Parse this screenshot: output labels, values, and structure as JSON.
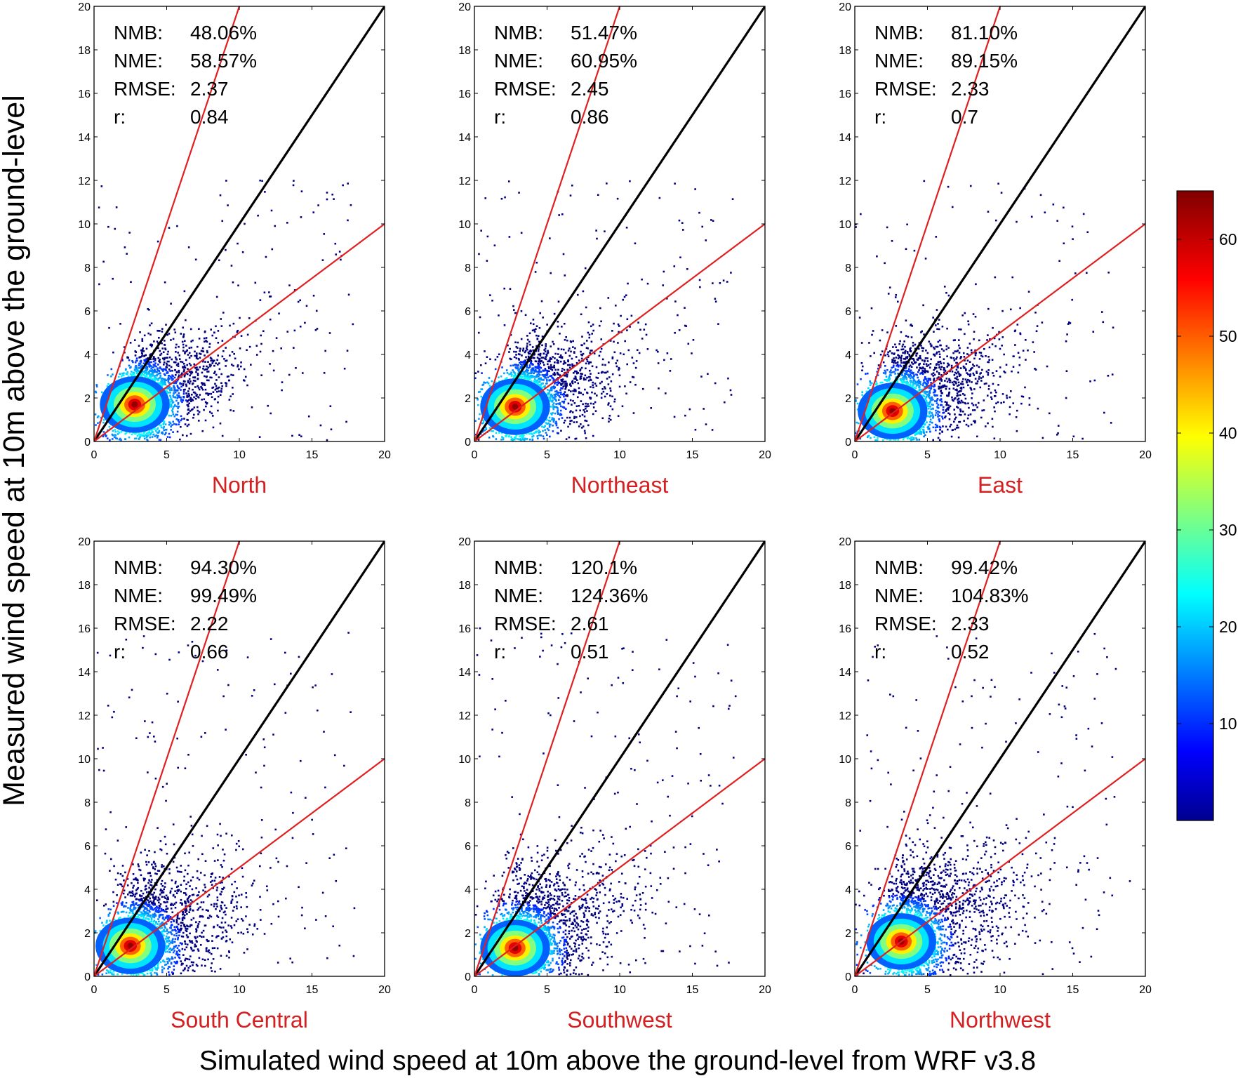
{
  "figure": {
    "ylabel": "Measured wind speed  at 10m above the ground-level",
    "xlabel": "Simulated wind speed at 10m above the ground-level from WRF v3.8",
    "colorbar": {
      "ticks": [
        10,
        20,
        30,
        40,
        50,
        60
      ],
      "range": [
        0,
        65
      ],
      "colormap": "jet"
    },
    "colors": {
      "identity_line": "#000000",
      "factor2_lines": "#e02020",
      "panel_label": "#d42020",
      "point_low": "#000080"
    }
  },
  "chart_data": [
    {
      "type": "scatter",
      "title": "North",
      "xlim": [
        0,
        20
      ],
      "ylim": [
        0,
        20
      ],
      "xticks": [
        0,
        5,
        10,
        15,
        20
      ],
      "yticks": [
        0,
        2,
        4,
        6,
        8,
        10,
        12,
        14,
        16,
        18,
        20
      ],
      "stats": [
        {
          "label": "NMB:",
          "value": "48.06%"
        },
        {
          "label": "NME:",
          "value": "58.57%"
        },
        {
          "label": "RMSE:",
          "value": "2.37"
        },
        {
          "label": "r:",
          "value": "0.84"
        }
      ],
      "reference_lines": [
        {
          "slope": 1
        },
        {
          "slope": 2
        },
        {
          "slope": 0.5
        }
      ],
      "density_center": [
        2.8,
        1.7
      ]
    },
    {
      "type": "scatter",
      "title": "Northeast",
      "xlim": [
        0,
        20
      ],
      "ylim": [
        0,
        20
      ],
      "xticks": [
        0,
        5,
        10,
        15,
        20
      ],
      "yticks": [
        0,
        2,
        4,
        6,
        8,
        10,
        12,
        14,
        16,
        18,
        20
      ],
      "stats": [
        {
          "label": "NMB:",
          "value": "51.47%"
        },
        {
          "label": "NME:",
          "value": "60.95%"
        },
        {
          "label": "RMSE:",
          "value": "2.45"
        },
        {
          "label": "r:",
          "value": "0.86"
        }
      ],
      "reference_lines": [
        {
          "slope": 1
        },
        {
          "slope": 2
        },
        {
          "slope": 0.5
        }
      ],
      "density_center": [
        2.8,
        1.6
      ]
    },
    {
      "type": "scatter",
      "title": "East",
      "xlim": [
        0,
        20
      ],
      "ylim": [
        0,
        20
      ],
      "xticks": [
        0,
        5,
        10,
        15,
        20
      ],
      "yticks": [
        0,
        2,
        4,
        6,
        8,
        10,
        12,
        14,
        16,
        18,
        20
      ],
      "stats": [
        {
          "label": "NMB:",
          "value": "81.10%"
        },
        {
          "label": "NME:",
          "value": "89.15%"
        },
        {
          "label": "RMSE:",
          "value": "2.33"
        },
        {
          "label": "r:",
          "value": "0.7"
        }
      ],
      "reference_lines": [
        {
          "slope": 1
        },
        {
          "slope": 2
        },
        {
          "slope": 0.5
        }
      ],
      "density_center": [
        2.6,
        1.4
      ]
    },
    {
      "type": "scatter",
      "title": "South Central",
      "xlim": [
        0,
        20
      ],
      "ylim": [
        0,
        20
      ],
      "xticks": [
        0,
        5,
        10,
        15,
        20
      ],
      "yticks": [
        0,
        2,
        4,
        6,
        8,
        10,
        12,
        14,
        16,
        18,
        20
      ],
      "stats": [
        {
          "label": "NMB:",
          "value": "94.30%"
        },
        {
          "label": "NME:",
          "value": "99.49%"
        },
        {
          "label": "RMSE:",
          "value": "2.22"
        },
        {
          "label": "r:",
          "value": "0.66"
        }
      ],
      "reference_lines": [
        {
          "slope": 1
        },
        {
          "slope": 2
        },
        {
          "slope": 0.5
        }
      ],
      "density_center": [
        2.5,
        1.4
      ]
    },
    {
      "type": "scatter",
      "title": "Southwest",
      "xlim": [
        0,
        20
      ],
      "ylim": [
        0,
        20
      ],
      "xticks": [
        0,
        5,
        10,
        15,
        20
      ],
      "yticks": [
        0,
        2,
        4,
        6,
        8,
        10,
        12,
        14,
        16,
        18,
        20
      ],
      "stats": [
        {
          "label": "NMB:",
          "value": "120.1%"
        },
        {
          "label": "NME:",
          "value": "124.36%"
        },
        {
          "label": "RMSE:",
          "value": "2.61"
        },
        {
          "label": "r:",
          "value": "0.51"
        }
      ],
      "reference_lines": [
        {
          "slope": 1
        },
        {
          "slope": 2
        },
        {
          "slope": 0.5
        }
      ],
      "density_center": [
        2.8,
        1.3
      ]
    },
    {
      "type": "scatter",
      "title": "Northwest",
      "xlim": [
        0,
        20
      ],
      "ylim": [
        0,
        20
      ],
      "xticks": [
        0,
        5,
        10,
        15,
        20
      ],
      "yticks": [
        0,
        2,
        4,
        6,
        8,
        10,
        12,
        14,
        16,
        18,
        20
      ],
      "stats": [
        {
          "label": "NMB:",
          "value": "99.42%"
        },
        {
          "label": "NME:",
          "value": "104.83%"
        },
        {
          "label": "RMSE:",
          "value": "2.33"
        },
        {
          "label": "r:",
          "value": "0.52"
        }
      ],
      "reference_lines": [
        {
          "slope": 1
        },
        {
          "slope": 2
        },
        {
          "slope": 0.5
        }
      ],
      "density_center": [
        3.2,
        1.6
      ]
    }
  ]
}
